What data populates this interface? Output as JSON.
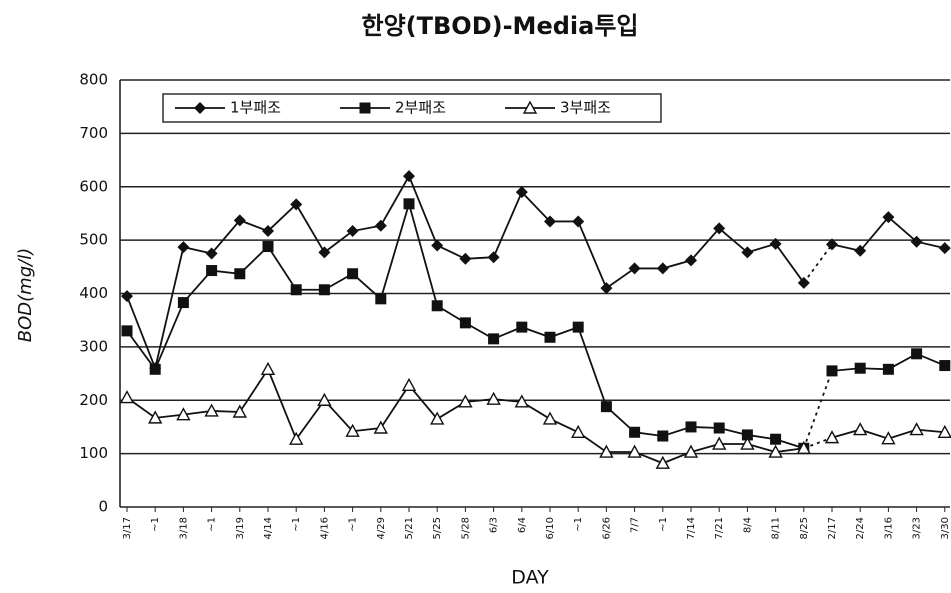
{
  "chart_data": {
    "type": "line",
    "title": "한양(TBOD)-Media투입",
    "x_label": "DAY",
    "y_label": "BOD(mg/l)",
    "categories": [
      "3/17",
      "~1",
      "3/18",
      "~1",
      "3/19",
      "4/14",
      "~1",
      "4/16",
      "~1",
      "4/29",
      "5/21",
      "5/25",
      "5/28",
      "6/3",
      "6/4",
      "6/10",
      "~1",
      "6/26",
      "7/7",
      "~1",
      "7/14",
      "7/21",
      "8/4",
      "8/11",
      "8/25",
      "2/17",
      "2/24",
      "3/16",
      "3/23",
      "3/30"
    ],
    "series": [
      {
        "name": "1부패조",
        "color": "#111111",
        "marker": "diamond",
        "values": [
          395,
          260,
          487,
          475,
          537,
          517,
          567,
          477,
          517,
          527,
          620,
          490,
          465,
          468,
          590,
          535,
          535,
          410,
          447,
          447,
          462,
          522,
          477,
          493,
          420,
          492,
          480,
          543,
          497,
          485
        ]
      },
      {
        "name": "2부패조",
        "color": "#111111",
        "marker": "square",
        "values": [
          330,
          258,
          383,
          443,
          437,
          488,
          407,
          407,
          437,
          390,
          568,
          377,
          345,
          315,
          337,
          318,
          337,
          188,
          140,
          133,
          150,
          148,
          135,
          127,
          110,
          255,
          260,
          258,
          287,
          265
        ]
      },
      {
        "name": "3부패조",
        "color": "#111111",
        "marker": "triangle-open",
        "values": [
          205,
          167,
          173,
          180,
          178,
          258,
          127,
          200,
          142,
          148,
          228,
          165,
          197,
          202,
          197,
          165,
          140,
          103,
          103,
          82,
          103,
          118,
          118,
          103,
          110,
          130,
          145,
          128,
          145,
          140
        ]
      }
    ],
    "dashed_between": [
      "8/25",
      "2/17"
    ],
    "ylim": [
      0,
      800
    ],
    "yticks": [
      0,
      100,
      200,
      300,
      400,
      500,
      600,
      700,
      800
    ],
    "grid": true,
    "legend": "top-left"
  }
}
